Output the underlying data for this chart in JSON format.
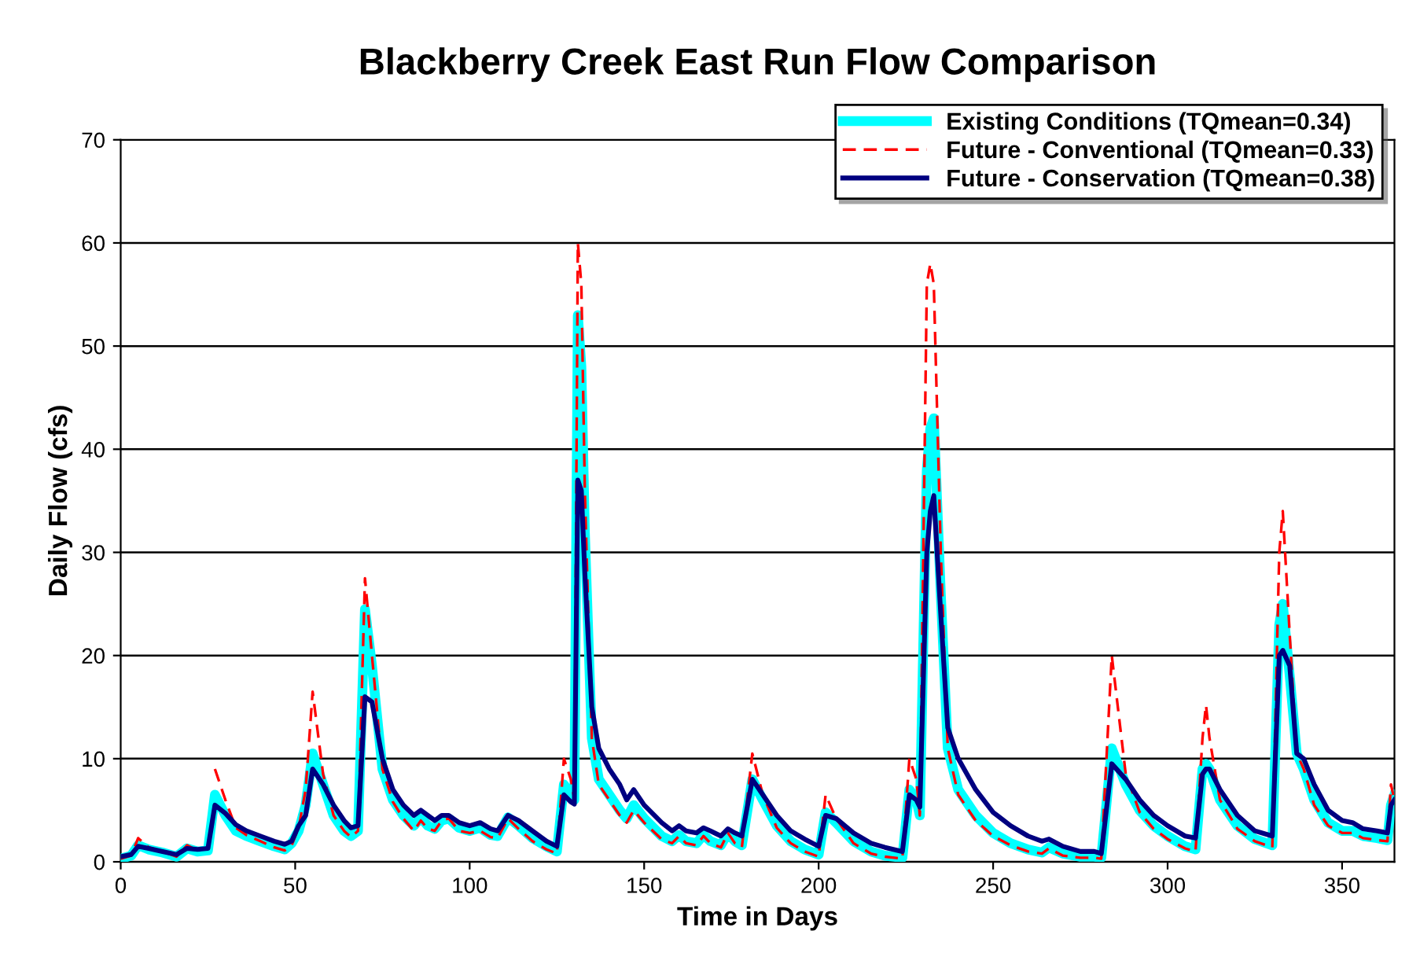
{
  "chart_data": {
    "type": "line",
    "title": "Blackberry Creek East Run Flow Comparison",
    "xlabel": "Time in Days",
    "ylabel": "Daily Flow (cfs)",
    "x": [
      0,
      3,
      5,
      8,
      12,
      16,
      19,
      22,
      25,
      27,
      30,
      33,
      36,
      40,
      44,
      47,
      49,
      51,
      53,
      55,
      58,
      61,
      64,
      66,
      68,
      70,
      72,
      75,
      78,
      81,
      84,
      86,
      88,
      90,
      92,
      94,
      97,
      100,
      103,
      106,
      108,
      111,
      114,
      118,
      122,
      125,
      127,
      129,
      130,
      131,
      132,
      133,
      135,
      137,
      140,
      143,
      145,
      147,
      150,
      155,
      158,
      160,
      162,
      165,
      167,
      169,
      172,
      174,
      176,
      178,
      181,
      184,
      188,
      192,
      196,
      200,
      202,
      205,
      210,
      215,
      219,
      224,
      226,
      228,
      229,
      231,
      232,
      233,
      235,
      237,
      240,
      245,
      250,
      255,
      260,
      264,
      266,
      270,
      275,
      279,
      281,
      284,
      288,
      292,
      296,
      300,
      305,
      308,
      310,
      311,
      312,
      315,
      320,
      325,
      330,
      332,
      333,
      335,
      337,
      339,
      342,
      346,
      350,
      353,
      356,
      360,
      363,
      364,
      365
    ],
    "series": [
      {
        "name": "Existing Conditions (TQmean=0.34)",
        "color": "#00ffff",
        "line_style": "solid",
        "values": [
          0.3,
          0.6,
          1.6,
          1.2,
          0.9,
          0.5,
          1.3,
          1.0,
          1.1,
          6.5,
          4.5,
          3.0,
          2.5,
          2.0,
          1.5,
          1.2,
          1.8,
          3.0,
          5.5,
          10.5,
          7.5,
          4.5,
          3.0,
          2.5,
          3.0,
          24.5,
          19,
          9,
          6,
          4.5,
          3.5,
          4.3,
          3.5,
          3.2,
          4.0,
          4.2,
          3.3,
          3.0,
          3.3,
          2.6,
          2.5,
          4.3,
          3.5,
          2.3,
          1.5,
          1.0,
          7.5,
          6.5,
          6.0,
          53,
          48,
          32,
          12,
          8,
          6.5,
          5,
          4.2,
          5.5,
          4.2,
          2.5,
          2.0,
          2.6,
          2.0,
          1.8,
          2.6,
          2.0,
          1.6,
          2.8,
          2.0,
          1.6,
          8.0,
          6.0,
          3.5,
          2.0,
          1.2,
          0.7,
          4.8,
          3.8,
          2.0,
          1.0,
          0.6,
          0.4,
          7.0,
          6.0,
          4.5,
          38,
          42,
          43,
          26,
          11,
          7,
          4.5,
          2.8,
          1.8,
          1.2,
          0.9,
          1.4,
          0.8,
          0.5,
          0.5,
          0.4,
          11,
          7.5,
          5.0,
          3.5,
          2.5,
          1.5,
          1.2,
          9.0,
          9.5,
          9.0,
          6.0,
          3.5,
          2.2,
          1.6,
          23,
          25,
          18,
          10.5,
          9,
          6,
          3.8,
          3.0,
          3.0,
          2.5,
          2.3,
          2.1,
          5.5,
          6.5
        ]
      },
      {
        "name": "Future - Conventional (TQmean=0.33)",
        "color": "#ff0000",
        "line_style": "dashed",
        "values": [
          0.3,
          0.6,
          2.3,
          1.4,
          1.0,
          0.5,
          1.6,
          1.1,
          null,
          9.0,
          6.0,
          3.3,
          2.6,
          2.0,
          1.4,
          1.1,
          1.6,
          3.3,
          7.0,
          16.5,
          8.5,
          4.5,
          3.0,
          2.4,
          3.0,
          27.5,
          20,
          9,
          5.8,
          4.2,
          3.0,
          4.0,
          3.2,
          3.0,
          4.0,
          4.2,
          3.0,
          2.8,
          3.0,
          2.4,
          2.3,
          4.2,
          3.2,
          2.0,
          1.2,
          0.8,
          10.0,
          8.0,
          6.0,
          60,
          56,
          36,
          12,
          7.5,
          6,
          4.5,
          3.8,
          5.0,
          3.8,
          2.2,
          1.8,
          2.5,
          1.8,
          1.6,
          2.5,
          1.8,
          1.4,
          2.8,
          1.8,
          1.4,
          10.5,
          6.5,
          3.3,
          1.8,
          1.0,
          0.5,
          6.5,
          4.2,
          1.8,
          0.8,
          0.5,
          0.3,
          10.0,
          8.0,
          4.5,
          56,
          58,
          56,
          30,
          11,
          6.5,
          4.0,
          2.5,
          1.6,
          1.0,
          0.8,
          1.3,
          0.6,
          0.4,
          0.4,
          0.3,
          20,
          8.5,
          4.8,
          3.2,
          2.2,
          1.3,
          1.0,
          12,
          15.2,
          12,
          6.0,
          3.2,
          2.0,
          1.4,
          30,
          34,
          22,
          10.5,
          9,
          5.5,
          3.5,
          2.8,
          2.8,
          2.3,
          2.1,
          2.0,
          7.5,
          6.0
        ]
      },
      {
        "name": "Future - Conservation (TQmean=0.38)",
        "color": "#000080",
        "line_style": "solid",
        "values": [
          0.5,
          0.7,
          1.5,
          1.3,
          1.0,
          0.7,
          1.3,
          1.2,
          1.3,
          5.5,
          4.7,
          3.6,
          3.0,
          2.5,
          2.0,
          1.7,
          2.0,
          3.5,
          4.5,
          9.0,
          7.5,
          5.5,
          4.0,
          3.3,
          3.5,
          16.0,
          15.5,
          10,
          7,
          5.5,
          4.5,
          5.0,
          4.5,
          4.0,
          4.5,
          4.5,
          3.8,
          3.5,
          3.8,
          3.2,
          3.0,
          4.5,
          4.0,
          3.0,
          2.0,
          1.5,
          6.5,
          5.8,
          5.6,
          37,
          36,
          28,
          15,
          11,
          9,
          7.5,
          6.0,
          7.0,
          5.5,
          3.8,
          3.0,
          3.5,
          3.0,
          2.8,
          3.3,
          3.0,
          2.5,
          3.2,
          2.8,
          2.5,
          8.0,
          6.5,
          4.5,
          3.0,
          2.2,
          1.5,
          4.5,
          4.2,
          2.8,
          1.8,
          1.4,
          1.0,
          6.5,
          6.0,
          5.3,
          30,
          34,
          35.5,
          24,
          13,
          10,
          7,
          4.8,
          3.5,
          2.5,
          2.0,
          2.2,
          1.5,
          1.0,
          1.0,
          0.8,
          9.5,
          8.0,
          6.0,
          4.5,
          3.5,
          2.5,
          2.3,
          8.5,
          9.0,
          9.0,
          7.0,
          4.5,
          3.0,
          2.5,
          20,
          20.5,
          19,
          10.5,
          10,
          7.5,
          5.0,
          4.0,
          3.8,
          3.2,
          3.0,
          2.8,
          5.5,
          6.0
        ]
      }
    ],
    "xlim": [
      0,
      365
    ],
    "xticks": [
      0,
      50,
      100,
      150,
      200,
      250,
      300,
      350
    ],
    "ylim": [
      0,
      70
    ],
    "yticks": [
      0,
      10,
      20,
      30,
      40,
      50,
      60,
      70
    ],
    "grid": "y",
    "legend": "top right",
    "marker": "none"
  }
}
